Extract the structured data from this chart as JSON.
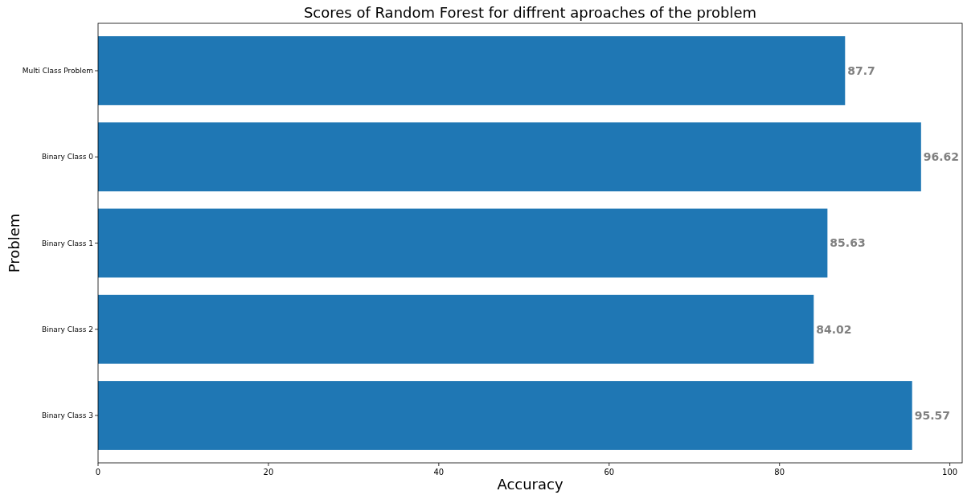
{
  "chart_data": {
    "type": "bar",
    "orientation": "horizontal",
    "title": "Scores of Random Forest for diffrent aproaches of the problem",
    "xlabel": "Accuracy",
    "ylabel": "Problem",
    "categories": [
      "Multi Class Problem",
      "Binary Class 0",
      "Binary Class 1",
      "Binary Class 2",
      "Binary Class 3"
    ],
    "values": [
      87.7,
      96.62,
      85.63,
      84.02,
      95.57
    ],
    "color": "#1f77b4",
    "data_labels": true,
    "xlim": [
      0,
      101.45
    ],
    "xticks": [
      0,
      20,
      40,
      60,
      80,
      100
    ]
  }
}
